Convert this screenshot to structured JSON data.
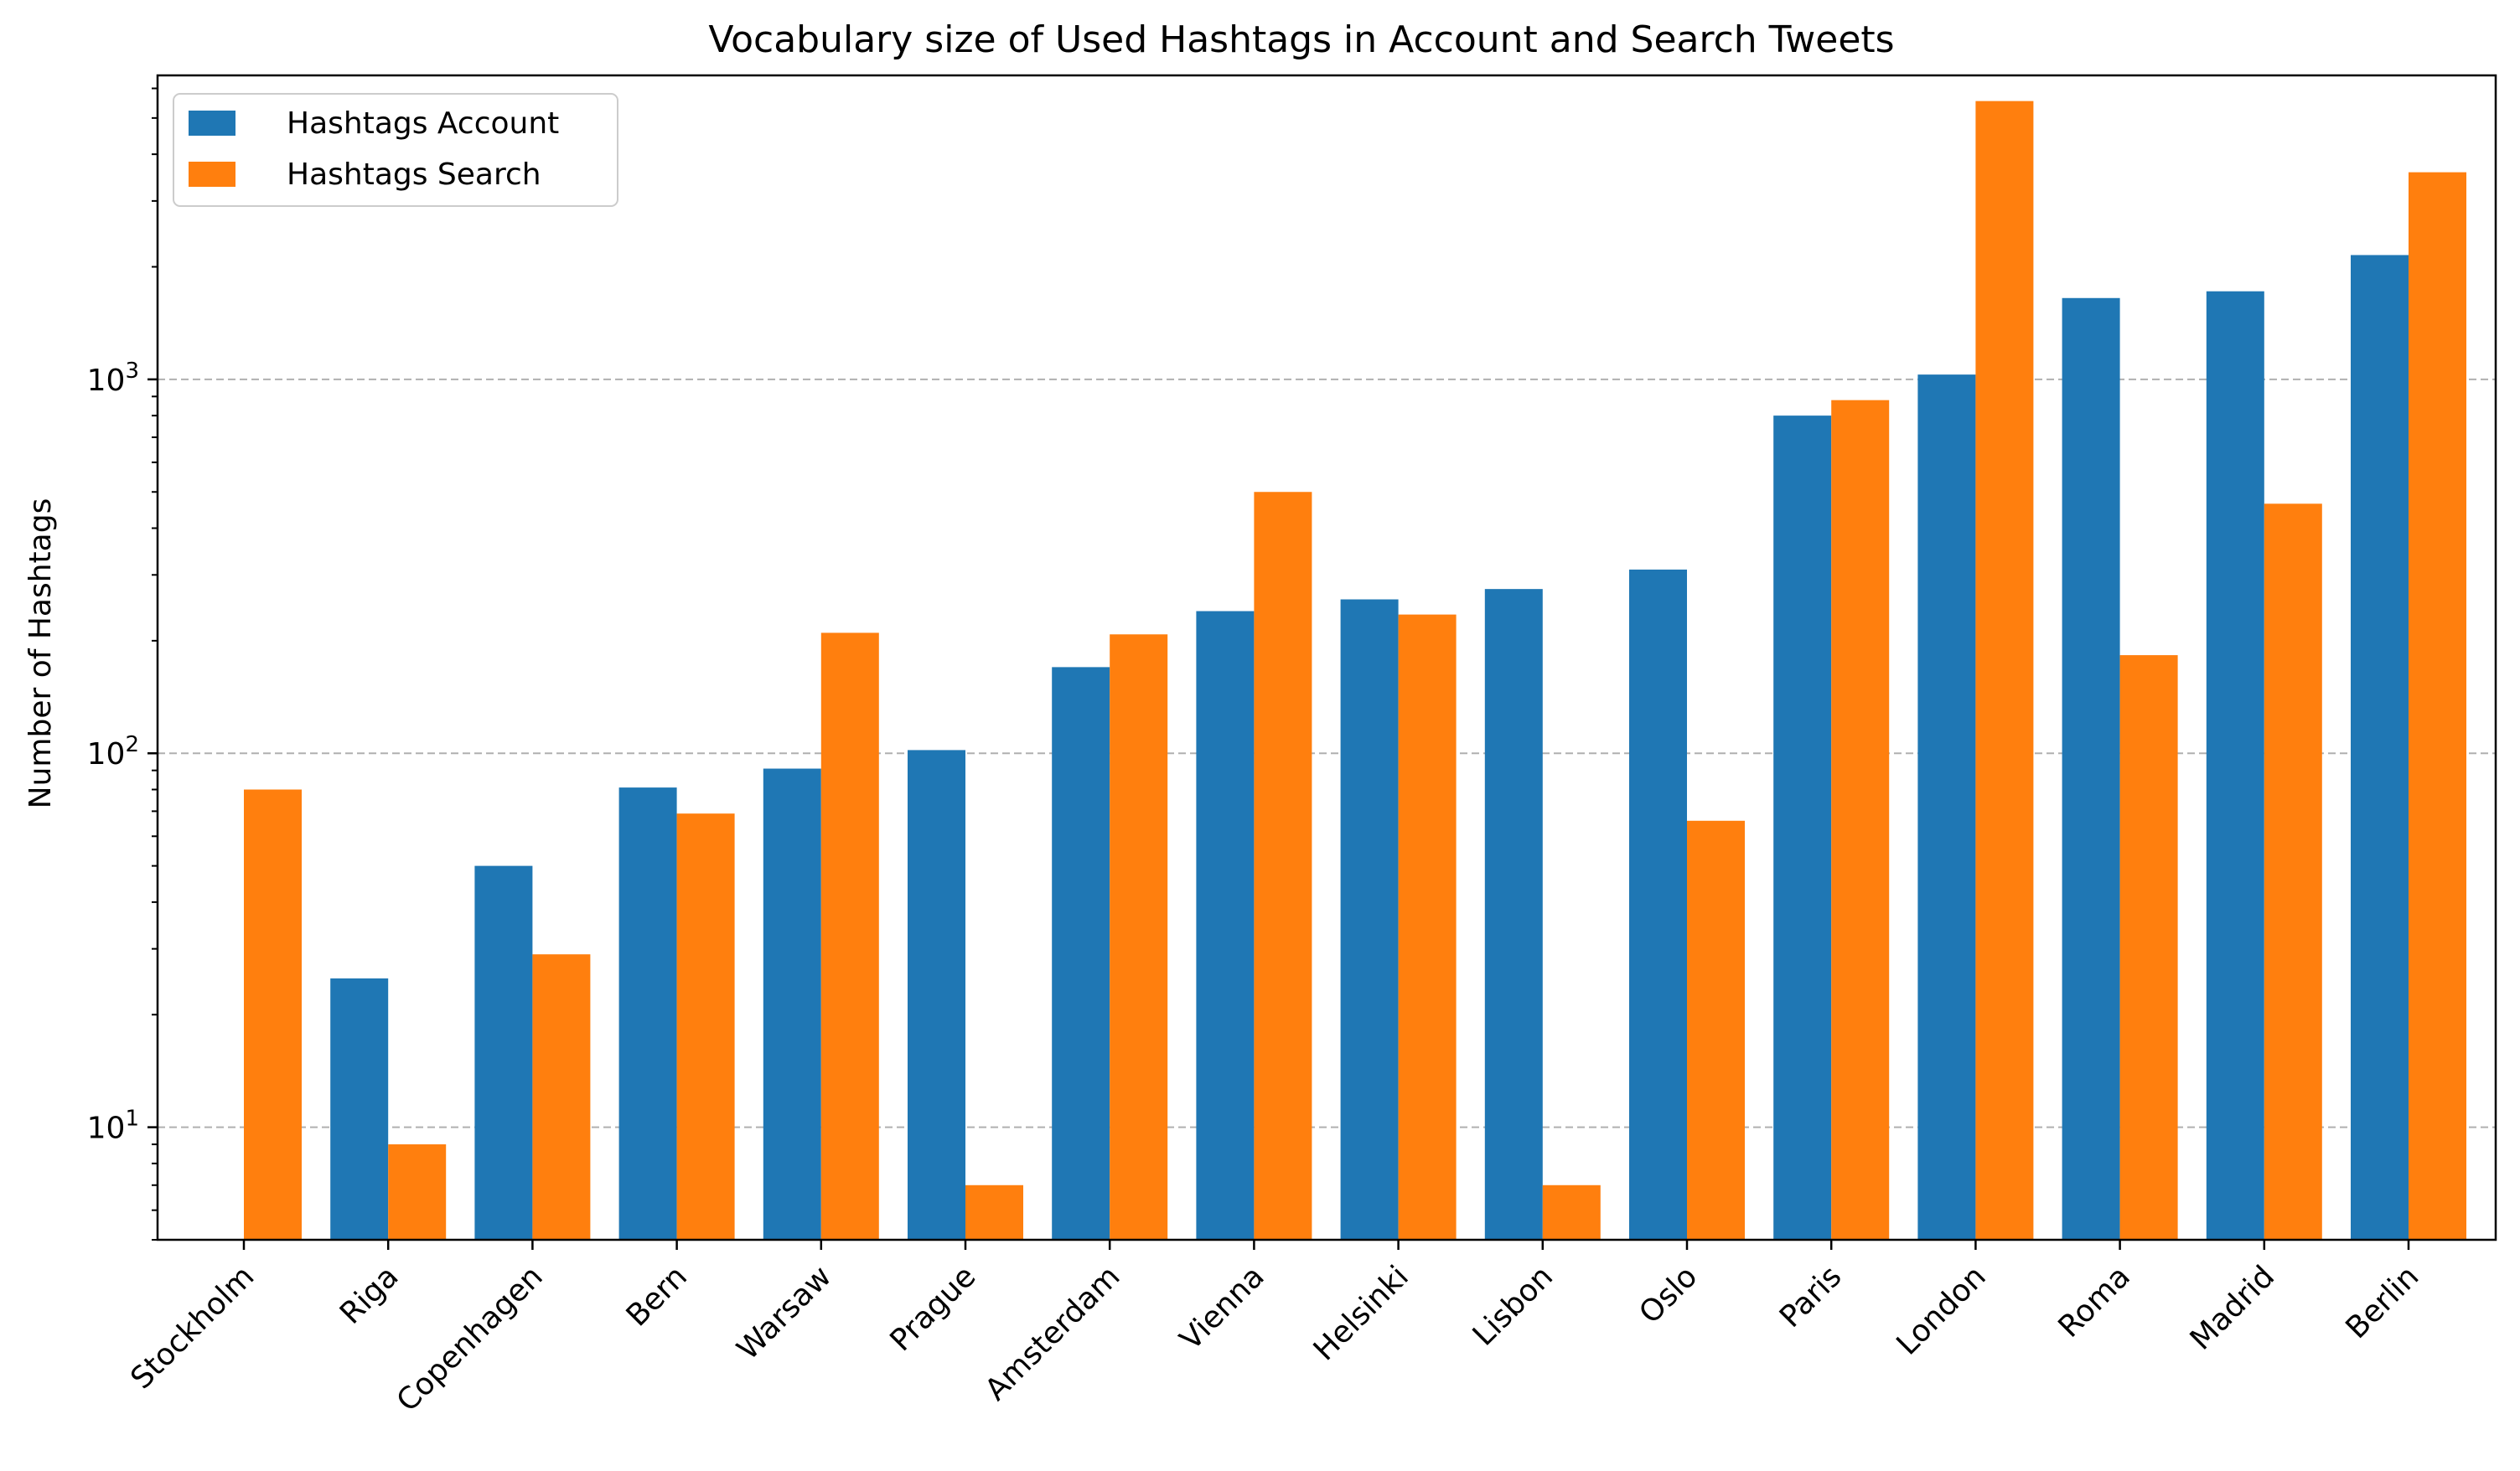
{
  "chart_data": {
    "type": "bar",
    "title": "Vocabulary size of Used Hashtags in Account and Search Tweets",
    "xlabel": "",
    "ylabel": "Number of Hashtags",
    "yscale": "log",
    "ylim": [
      5,
      6500
    ],
    "grid": "y-major-dashed",
    "legend_position": "top-left",
    "categories": [
      "Stockholm",
      "Riga",
      "Copenhagen",
      "Bern",
      "Warsaw",
      "Prague",
      "Amsterdam",
      "Vienna",
      "Helsinki",
      "Lisbon",
      "Oslo",
      "Paris",
      "London",
      "Roma",
      "Madrid",
      "Berlin"
    ],
    "y_ticks": [
      {
        "value": 10,
        "base": "10",
        "exp": "1"
      },
      {
        "value": 100,
        "base": "10",
        "exp": "2"
      },
      {
        "value": 1000,
        "base": "10",
        "exp": "3"
      }
    ],
    "series": [
      {
        "name": "Hashtags Account",
        "color": "#1f77b4",
        "values": [
          null,
          25,
          50,
          81,
          91,
          102,
          170,
          240,
          258,
          275,
          310,
          800,
          1030,
          1650,
          1720,
          2150
        ]
      },
      {
        "name": "Hashtags Search",
        "color": "#ff7f0e",
        "values": [
          80,
          9,
          29,
          69,
          210,
          7,
          208,
          500,
          235,
          7,
          66,
          880,
          5550,
          183,
          465,
          3580
        ]
      }
    ]
  }
}
